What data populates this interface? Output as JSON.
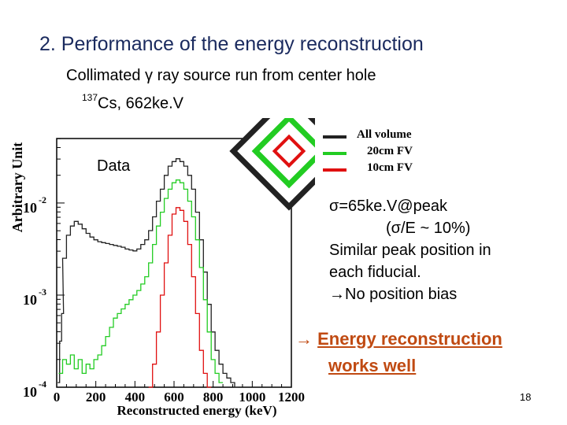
{
  "slide": {
    "title": "2. Performance of the energy reconstruction",
    "subtitle": "Collimated γ ray source run from center hole",
    "source_isotope_mass": "137",
    "source_rest": "Cs, 662ke.V",
    "page_number": "18"
  },
  "stats": {
    "resolution": "σ=65ke.V@peak",
    "ratio": "(σ/E ~ 10%)",
    "line1": "Similar peak position in",
    "line2": "each fiducial.",
    "arrow": "→",
    "bias": "No position bias"
  },
  "conclusion": {
    "arrow": "→",
    "line1": "Energy reconstruction",
    "line2": "works well",
    "color": "#c04a12"
  },
  "fv_icon": {
    "outer_color": "#222222",
    "middle_color": "#22cc22",
    "inner_color": "#e01010"
  },
  "chart_data": {
    "type": "line",
    "title": "",
    "plot_label": "Data",
    "xlabel": "Reconstructed energy (keV)",
    "ylabel": "Arbitrary Unit",
    "xlim": [
      0,
      1200
    ],
    "ylim_log10": [
      -4,
      -1.3
    ],
    "y_scale": "log",
    "x_ticks": [
      "0",
      "200",
      "400",
      "600",
      "800",
      "1000",
      "1200"
    ],
    "y_ticks": [
      {
        "base": "10",
        "exp": "-2",
        "value": -2
      },
      {
        "base": "10",
        "exp": "-3",
        "value": -3
      },
      {
        "base": "10",
        "exp": "-4",
        "value": -4
      }
    ],
    "legend_position": "top-right",
    "series": [
      {
        "name": "All volume",
        "color": "#222222",
        "x": [
          10,
          20,
          30,
          40,
          60,
          80,
          100,
          120,
          140,
          160,
          180,
          200,
          220,
          240,
          260,
          280,
          300,
          320,
          340,
          360,
          380,
          400,
          420,
          440,
          460,
          480,
          500,
          520,
          540,
          560,
          580,
          600,
          620,
          640,
          660,
          680,
          700,
          720,
          740,
          760,
          780,
          800,
          820,
          840,
          860,
          880,
          900,
          920
        ],
        "y": [
          -3.95,
          -3.5,
          -3.2,
          -2.6,
          -2.35,
          -2.25,
          -2.2,
          -2.23,
          -2.28,
          -2.33,
          -2.37,
          -2.4,
          -2.42,
          -2.43,
          -2.44,
          -2.45,
          -2.46,
          -2.47,
          -2.48,
          -2.5,
          -2.51,
          -2.52,
          -2.5,
          -2.45,
          -2.4,
          -2.3,
          -2.15,
          -1.98,
          -1.85,
          -1.7,
          -1.6,
          -1.55,
          -1.52,
          -1.55,
          -1.6,
          -1.7,
          -1.85,
          -2.1,
          -2.4,
          -2.75,
          -3.1,
          -3.4,
          -3.6,
          -3.75,
          -3.85,
          -3.9,
          -3.95,
          -4.0
        ]
      },
      {
        "name": "20cm FV",
        "color": "#22cc22",
        "x": [
          20,
          40,
          60,
          80,
          100,
          120,
          140,
          160,
          180,
          200,
          220,
          240,
          260,
          280,
          300,
          320,
          340,
          360,
          380,
          400,
          420,
          440,
          460,
          480,
          500,
          520,
          540,
          560,
          580,
          600,
          620,
          640,
          660,
          680,
          700,
          720,
          740,
          760,
          780,
          800,
          820,
          840
        ],
        "y": [
          -3.85,
          -3.7,
          -3.75,
          -3.65,
          -3.8,
          -3.7,
          -3.85,
          -3.75,
          -3.8,
          -3.7,
          -3.65,
          -3.55,
          -3.45,
          -3.35,
          -3.25,
          -3.2,
          -3.15,
          -3.1,
          -3.05,
          -3.0,
          -2.95,
          -2.88,
          -2.8,
          -2.65,
          -2.45,
          -2.25,
          -2.1,
          -1.95,
          -1.85,
          -1.78,
          -1.75,
          -1.78,
          -1.85,
          -1.98,
          -2.15,
          -2.4,
          -2.7,
          -3.05,
          -3.4,
          -3.7,
          -3.85,
          -3.95
        ]
      },
      {
        "name": "10cm FV",
        "color": "#e01010",
        "x": [
          480,
          500,
          520,
          540,
          560,
          580,
          600,
          620,
          640,
          660,
          680,
          700,
          720,
          740,
          760,
          780
        ],
        "y": [
          -4.0,
          -3.75,
          -3.4,
          -3.0,
          -2.65,
          -2.35,
          -2.12,
          -2.05,
          -2.08,
          -2.2,
          -2.45,
          -2.8,
          -3.2,
          -3.6,
          -3.85,
          -4.0
        ]
      }
    ]
  }
}
